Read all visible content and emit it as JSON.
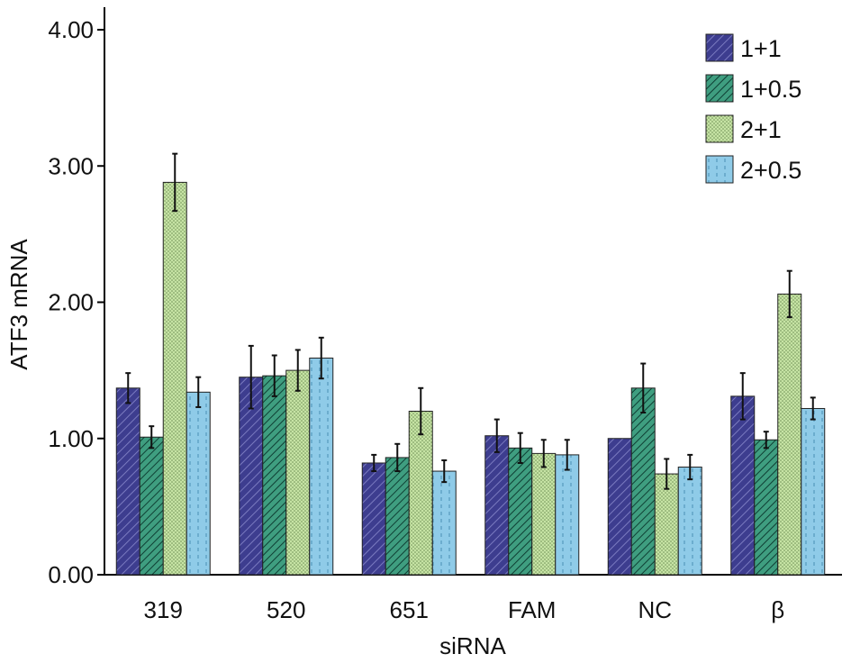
{
  "chart_data": {
    "type": "bar",
    "title": "",
    "xlabel": "siRNA",
    "ylabel": "ATF3 mRNA",
    "ylim": [
      0,
      4
    ],
    "yticks": [
      "0.00",
      "1.00",
      "2.00",
      "3.00",
      "4.00"
    ],
    "ytick_values": [
      0,
      1,
      2,
      3,
      4
    ],
    "categories": [
      "319",
      "520",
      "651",
      "FAM",
      "NC",
      "β"
    ],
    "legend_position": "top-right",
    "grid": false,
    "series": [
      {
        "name": "1+1",
        "color": "#3d3d8f",
        "pattern": "diagonal-hatch",
        "values": [
          1.37,
          1.45,
          0.82,
          1.02,
          1.0,
          1.31
        ],
        "errors": [
          0.11,
          0.23,
          0.06,
          0.12,
          0.0,
          0.17
        ]
      },
      {
        "name": "1+0.5",
        "color": "#3f9e80",
        "pattern": "dense-diagonal-hatch",
        "values": [
          1.01,
          1.46,
          0.86,
          0.93,
          1.37,
          0.99
        ],
        "errors": [
          0.08,
          0.15,
          0.1,
          0.11,
          0.18,
          0.06
        ]
      },
      {
        "name": "2+1",
        "color": "#c6e3a4",
        "pattern": "dots",
        "values": [
          2.88,
          1.5,
          1.2,
          0.89,
          0.74,
          2.06
        ],
        "errors": [
          0.21,
          0.15,
          0.17,
          0.1,
          0.11,
          0.17
        ]
      },
      {
        "name": "2+0.5",
        "color": "#8fcbe8",
        "pattern": "dashed-vertical",
        "values": [
          1.34,
          1.59,
          0.76,
          0.88,
          0.79,
          1.22
        ],
        "errors": [
          0.11,
          0.15,
          0.08,
          0.11,
          0.09,
          0.08
        ]
      }
    ]
  }
}
